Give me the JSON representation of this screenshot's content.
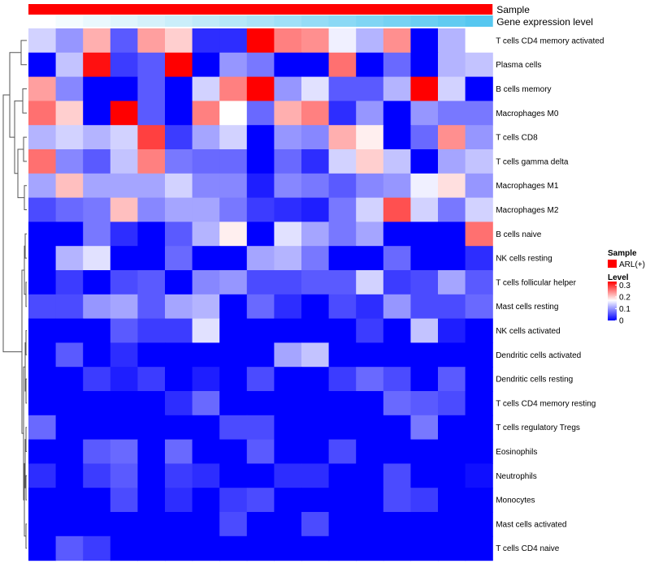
{
  "chart_data": {
    "type": "heatmap",
    "title": "",
    "annotation_tracks": [
      {
        "name": "Sample",
        "color": "#ff0000"
      },
      {
        "name": "Gene expression level",
        "colors": [
          "#ffffff",
          "#56c7f0"
        ]
      }
    ],
    "legend": {
      "sample_title": "Sample",
      "sample_item": "ARL(+)",
      "sample_color": "#ff0000",
      "level_title": "Level",
      "ticks": [
        "0.3",
        "0.2",
        "0.1",
        "0"
      ],
      "tick_values": [
        0.3,
        0.2,
        0.1,
        0
      ],
      "range": [
        0,
        0.33
      ],
      "colors": {
        "low": "#0000ff",
        "mid": "#ffffff",
        "high": "#ff0000",
        "mid_value": 0.17
      }
    },
    "row_labels": [
      "T cells CD4 memory activated",
      "Plasma cells",
      "B cells memory",
      "Macrophages M0",
      "T cells CD8",
      "T cells gamma delta",
      "Macrophages M1",
      "Macrophages M2",
      "B cells naive",
      "NK cells resting",
      "T cells follicular helper",
      "Mast cells resting",
      "NK cells activated",
      "Dendritic cells activated",
      "Dendritic cells resting",
      "T cells CD4 memory resting",
      "T cells regulatory  Tregs",
      "Eosinophils",
      "Neutrophils",
      "Monocytes",
      "Mast cells activated",
      "T cells CD4 naive"
    ],
    "values": [
      [
        0.14,
        0.1,
        0.22,
        0.06,
        0.23,
        0.2,
        0.03,
        0.03,
        0.33,
        0.25,
        0.24,
        0.16,
        0.12,
        0.24,
        0.0,
        0.12,
        0.17
      ],
      [
        0.0,
        0.13,
        0.32,
        0.04,
        0.06,
        0.33,
        0.0,
        0.1,
        0.08,
        0.0,
        0.0,
        0.26,
        0.0,
        0.07,
        0.0,
        0.12,
        0.13
      ],
      [
        0.23,
        0.09,
        0.0,
        0.0,
        0.06,
        0.0,
        0.14,
        0.25,
        0.33,
        0.1,
        0.15,
        0.06,
        0.06,
        0.12,
        0.33,
        0.14,
        0.0
      ],
      [
        0.26,
        0.2,
        0.0,
        0.33,
        0.06,
        0.0,
        0.25,
        0.17,
        0.07,
        0.22,
        0.25,
        0.03,
        0.1,
        0.0,
        0.1,
        0.08,
        0.08
      ],
      [
        0.12,
        0.14,
        0.12,
        0.14,
        0.29,
        0.04,
        0.11,
        0.14,
        0.0,
        0.1,
        0.09,
        0.22,
        0.18,
        0.0,
        0.07,
        0.24,
        0.1
      ],
      [
        0.26,
        0.09,
        0.06,
        0.13,
        0.25,
        0.08,
        0.07,
        0.07,
        0.0,
        0.07,
        0.03,
        0.14,
        0.2,
        0.13,
        0.0,
        0.11,
        0.13
      ],
      [
        0.11,
        0.21,
        0.11,
        0.11,
        0.11,
        0.14,
        0.09,
        0.09,
        0.02,
        0.09,
        0.08,
        0.06,
        0.09,
        0.1,
        0.16,
        0.19,
        0.1
      ],
      [
        0.05,
        0.07,
        0.08,
        0.21,
        0.09,
        0.11,
        0.11,
        0.08,
        0.04,
        0.03,
        0.02,
        0.08,
        0.14,
        0.28,
        0.14,
        0.08,
        0.14
      ],
      [
        0.0,
        0.0,
        0.08,
        0.03,
        0.0,
        0.06,
        0.12,
        0.18,
        0.0,
        0.15,
        0.11,
        0.08,
        0.11,
        0.0,
        0.0,
        0.0,
        0.26
      ],
      [
        0.0,
        0.12,
        0.15,
        0.0,
        0.0,
        0.07,
        0.0,
        0.0,
        0.11,
        0.12,
        0.08,
        0.0,
        0.0,
        0.07,
        0.0,
        0.0,
        0.03
      ],
      [
        0.0,
        0.04,
        0.0,
        0.05,
        0.06,
        0.0,
        0.09,
        0.1,
        0.05,
        0.05,
        0.06,
        0.06,
        0.14,
        0.04,
        0.05,
        0.11,
        0.06
      ],
      [
        0.05,
        0.05,
        0.1,
        0.11,
        0.06,
        0.11,
        0.12,
        0.0,
        0.07,
        0.03,
        0.0,
        0.05,
        0.03,
        0.1,
        0.05,
        0.05,
        0.07
      ],
      [
        0.0,
        0.0,
        0.0,
        0.06,
        0.04,
        0.04,
        0.15,
        0.0,
        0.0,
        0.0,
        0.0,
        0.0,
        0.04,
        0.0,
        0.13,
        0.02,
        0.0
      ],
      [
        0.0,
        0.06,
        0.0,
        0.03,
        0.0,
        0.0,
        0.0,
        0.0,
        0.0,
        0.11,
        0.13,
        0.0,
        0.0,
        0.0,
        0.0,
        0.0,
        0.0
      ],
      [
        0.0,
        0.0,
        0.04,
        0.02,
        0.04,
        0.0,
        0.02,
        0.0,
        0.05,
        0.0,
        0.0,
        0.04,
        0.07,
        0.05,
        0.0,
        0.06,
        0.0
      ],
      [
        0.0,
        0.0,
        0.0,
        0.0,
        0.0,
        0.03,
        0.07,
        0.0,
        0.0,
        0.0,
        0.0,
        0.0,
        0.0,
        0.07,
        0.06,
        0.05,
        0.0
      ],
      [
        0.07,
        0.0,
        0.0,
        0.0,
        0.0,
        0.0,
        0.0,
        0.05,
        0.05,
        0.0,
        0.0,
        0.0,
        0.0,
        0.0,
        0.08,
        0.0,
        0.0
      ],
      [
        0.0,
        0.0,
        0.06,
        0.07,
        0.0,
        0.07,
        0.0,
        0.0,
        0.06,
        0.0,
        0.0,
        0.05,
        0.0,
        0.0,
        0.0,
        0.0,
        0.0
      ],
      [
        0.03,
        0.0,
        0.04,
        0.06,
        0.0,
        0.04,
        0.03,
        0.0,
        0.0,
        0.03,
        0.03,
        0.0,
        0.0,
        0.05,
        0.0,
        0.0,
        0.01
      ],
      [
        0.0,
        0.0,
        0.0,
        0.05,
        0.0,
        0.03,
        0.0,
        0.04,
        0.05,
        0.0,
        0.0,
        0.0,
        0.0,
        0.05,
        0.04,
        0.0,
        0.0
      ],
      [
        0.0,
        0.0,
        0.0,
        0.0,
        0.0,
        0.0,
        0.0,
        0.05,
        0.0,
        0.0,
        0.05,
        0.0,
        0.0,
        0.0,
        0.0,
        0.0,
        0.0
      ],
      [
        0.0,
        0.06,
        0.04,
        0.0,
        0.0,
        0.0,
        0.0,
        0.0,
        0.0,
        0.0,
        0.0,
        0.0,
        0.0,
        0.0,
        0.0,
        0.0,
        0.0
      ]
    ]
  }
}
